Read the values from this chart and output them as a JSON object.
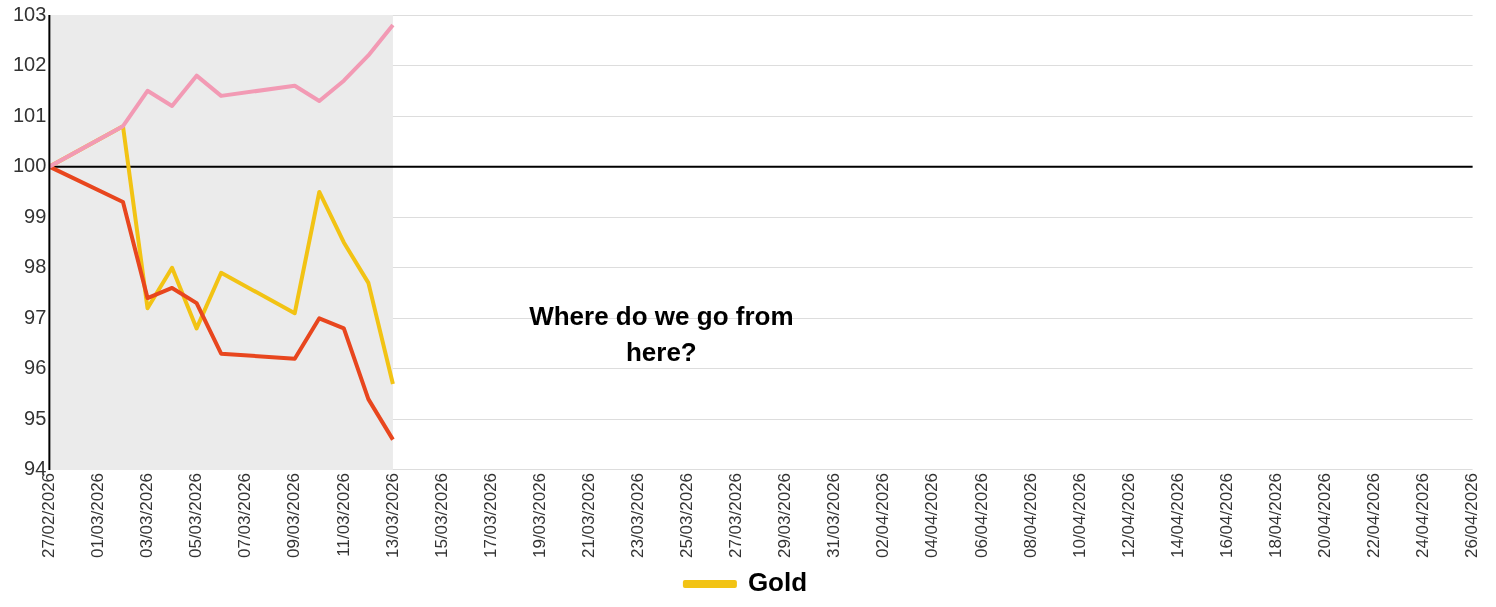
{
  "chart_data": {
    "type": "line",
    "x": [
      "2026-02-27",
      "2026-03-02",
      "2026-03-03",
      "2026-03-04",
      "2026-03-05",
      "2026-03-06",
      "2026-03-09",
      "2026-03-10",
      "2026-03-11",
      "2026-03-12",
      "2026-03-13"
    ],
    "series": [
      {
        "name": "Gold",
        "color": "#f2c314",
        "values": [
          100,
          100.8,
          97.2,
          98.0,
          96.8,
          97.9,
          97.1,
          99.5,
          98.5,
          97.7,
          95.7
        ]
      },
      {
        "color": "#e8461e",
        "values": [
          100,
          99.3,
          97.4,
          97.6,
          97.3,
          96.3,
          96.2,
          97.0,
          96.8,
          95.4,
          94.6
        ]
      },
      {
        "color": "#f29ab4",
        "values": [
          100,
          100.8,
          101.5,
          101.2,
          101.8,
          101.4,
          101.6,
          101.3,
          101.7,
          102.2,
          102.8
        ]
      }
    ],
    "xlim": [
      "2026-02-27",
      "2026-04-26"
    ],
    "xticks": [
      {
        "value": "2026-02-27",
        "label": "27/02/2026"
      },
      {
        "value": "2026-03-01",
        "label": "01/03/2026"
      },
      {
        "value": "2026-03-03",
        "label": "03/03/2026"
      },
      {
        "value": "2026-03-05",
        "label": "05/03/2026"
      },
      {
        "value": "2026-03-07",
        "label": "07/03/2026"
      },
      {
        "value": "2026-03-09",
        "label": "09/03/2026"
      },
      {
        "value": "2026-03-11",
        "label": "11/03/2026"
      },
      {
        "value": "2026-03-13",
        "label": "13/03/2026"
      },
      {
        "value": "2026-03-15",
        "label": "15/03/2026"
      },
      {
        "value": "2026-03-17",
        "label": "17/03/2026"
      },
      {
        "value": "2026-03-19",
        "label": "19/03/2026"
      },
      {
        "value": "2026-03-21",
        "label": "21/03/2026"
      },
      {
        "value": "2026-03-23",
        "label": "23/03/2026"
      },
      {
        "value": "2026-03-25",
        "label": "25/03/2026"
      },
      {
        "value": "2026-03-27",
        "label": "27/03/2026"
      },
      {
        "value": "2026-03-29",
        "label": "29/03/2026"
      },
      {
        "value": "2026-03-31",
        "label": "31/03/2026"
      },
      {
        "value": "2026-04-02",
        "label": "02/04/2026"
      },
      {
        "value": "2026-04-04",
        "label": "04/04/2026"
      },
      {
        "value": "2026-04-06",
        "label": "06/04/2026"
      },
      {
        "value": "2026-04-08",
        "label": "08/04/2026"
      },
      {
        "value": "2026-04-10",
        "label": "10/04/2026"
      },
      {
        "value": "2026-04-12",
        "label": "12/04/2026"
      },
      {
        "value": "2026-04-14",
        "label": "14/04/2026"
      },
      {
        "value": "2026-04-16",
        "label": "16/04/2026"
      },
      {
        "value": "2026-04-18",
        "label": "18/04/2026"
      },
      {
        "value": "2026-04-20",
        "label": "20/04/2026"
      },
      {
        "value": "2026-04-22",
        "label": "22/04/2026"
      },
      {
        "value": "2026-04-24",
        "label": "24/04/2026"
      },
      {
        "value": "2026-04-26",
        "label": "26/04/2026"
      }
    ],
    "ylim": [
      94,
      103
    ],
    "yticks": [
      94,
      95,
      96,
      97,
      98,
      99,
      100,
      101,
      102,
      103
    ],
    "grid": "y",
    "legend": "bottom",
    "marker": "none",
    "line_style": "solid",
    "ref_lines": [
      {
        "axis": "y",
        "value": 100,
        "color": "#000000"
      }
    ],
    "bands": [
      {
        "axis": "x",
        "from": "2026-02-27",
        "to": "2026-03-13",
        "color": "#ebebeb"
      }
    ],
    "annotations": [
      "Where do we go from here?"
    ]
  }
}
